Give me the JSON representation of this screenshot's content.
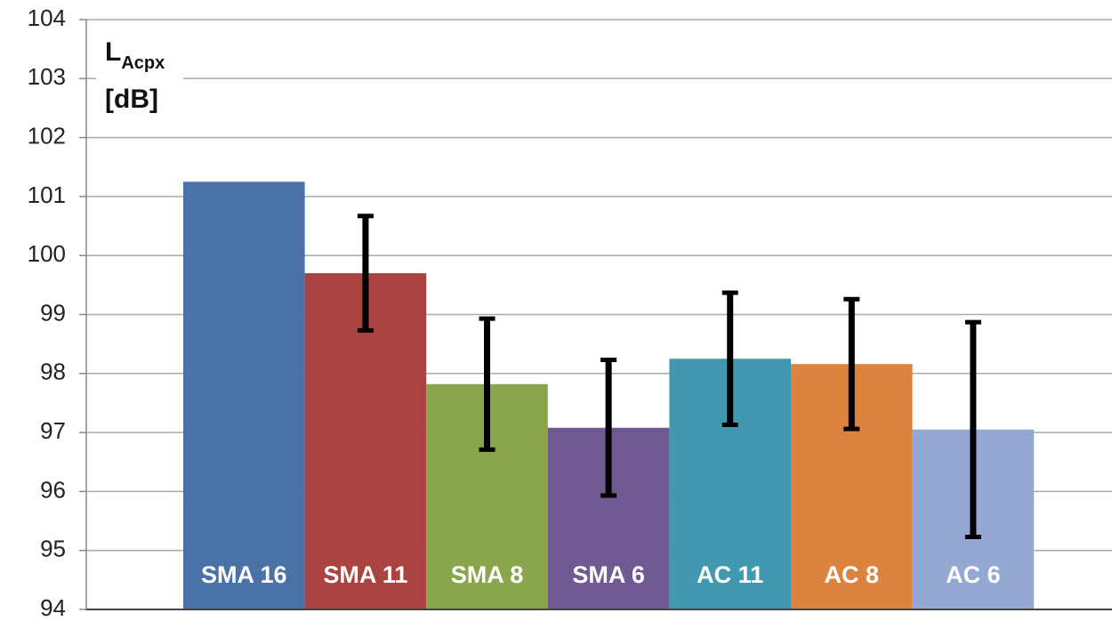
{
  "chart_data": {
    "type": "bar",
    "y_label": "L",
    "y_label_sub": "Acpx",
    "y_unit": "[dB]",
    "categories": [
      "SMA 16",
      "SMA 11",
      "SMA 8",
      "SMA 6",
      "AC 11",
      "AC 8",
      "AC 6"
    ],
    "values": [
      101.25,
      99.7,
      97.82,
      97.08,
      98.25,
      98.16,
      97.05
    ],
    "errors": [
      null,
      0.97,
      1.11,
      1.15,
      1.12,
      1.1,
      1.82
    ],
    "colors": [
      "#4a72a6",
      "#a94442",
      "#8aa64d",
      "#6f5a92",
      "#4199b0",
      "#dc843f",
      "#93a9d1"
    ],
    "ylim": [
      94,
      104
    ],
    "yticks": [
      94,
      95,
      96,
      97,
      98,
      99,
      100,
      101,
      102,
      103,
      104
    ],
    "grid": true
  }
}
